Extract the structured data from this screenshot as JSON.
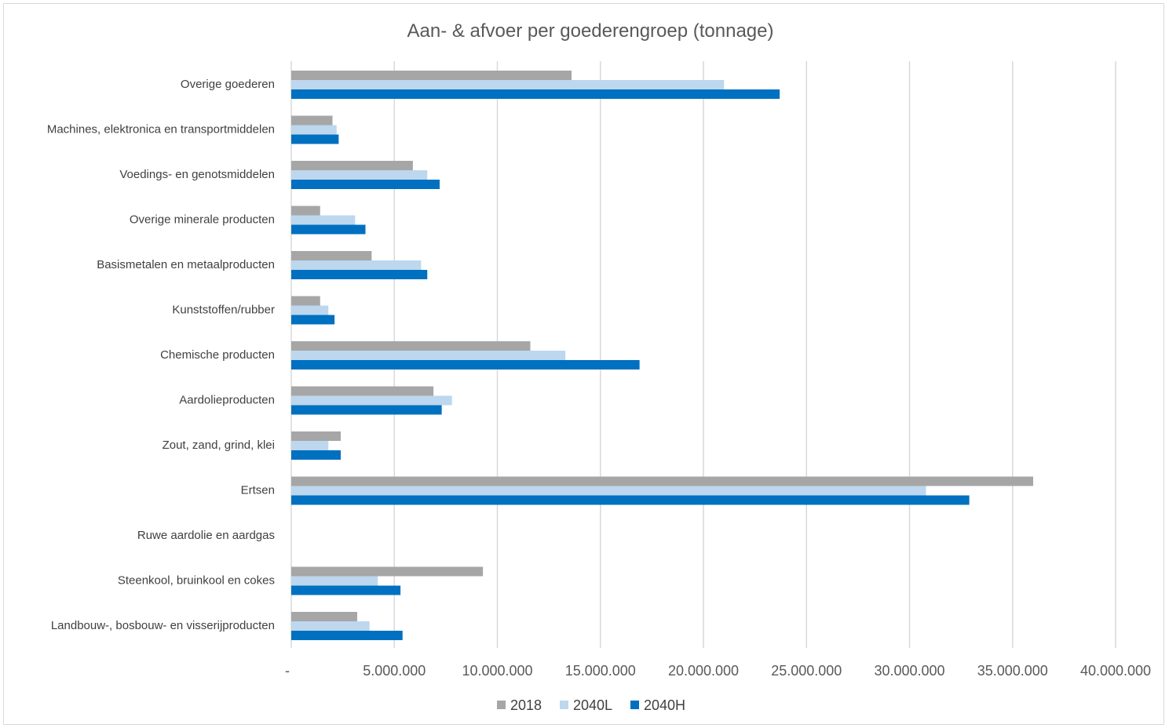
{
  "colors": {
    "s2018": "#a6a6a6",
    "s2040L": "#bdd7ee",
    "s2040H": "#0070c0",
    "grid": "#d9d9d9"
  },
  "chart_data": {
    "type": "bar",
    "orientation": "horizontal",
    "title": "Aan- & afvoer per goederengroep (tonnage)",
    "xlabel": "",
    "ylabel": "",
    "xlim": [
      0,
      40000000
    ],
    "grid": true,
    "legend_position": "bottom",
    "categories": [
      "Overige goederen",
      "Machines, elektronica en transportmiddelen",
      "Voedings- en genotsmiddelen",
      "Overige minerale producten",
      "Basismetalen en metaalproducten",
      "Kunststoffen/rubber",
      "Chemische producten",
      "Aardolieproducten",
      "Zout, zand, grind, klei",
      "Ertsen",
      "Ruwe aardolie en aardgas",
      "Steenkool, bruinkool en cokes",
      "Landbouw-, bosbouw- en visserijproducten"
    ],
    "series": [
      {
        "name": "2018",
        "values": [
          13600000,
          2000000,
          5900000,
          1400000,
          3900000,
          1400000,
          11600000,
          6900000,
          2400000,
          36000000,
          0,
          9300000,
          3200000
        ]
      },
      {
        "name": "2040L",
        "values": [
          21000000,
          2200000,
          6600000,
          3100000,
          6300000,
          1800000,
          13300000,
          7800000,
          1800000,
          30800000,
          0,
          4200000,
          3800000
        ]
      },
      {
        "name": "2040H",
        "values": [
          23700000,
          2300000,
          7200000,
          3600000,
          6600000,
          2100000,
          16900000,
          7300000,
          2400000,
          32900000,
          0,
          5300000,
          5400000
        ]
      }
    ],
    "x_ticks": [
      {
        "value": 0,
        "label": "-"
      },
      {
        "value": 5000000,
        "label": "5.000.000"
      },
      {
        "value": 10000000,
        "label": "10.000.000"
      },
      {
        "value": 15000000,
        "label": "15.000.000"
      },
      {
        "value": 20000000,
        "label": "20.000.000"
      },
      {
        "value": 25000000,
        "label": "25.000.000"
      },
      {
        "value": 30000000,
        "label": "30.000.000"
      },
      {
        "value": 35000000,
        "label": "35.000.000"
      },
      {
        "value": 40000000,
        "label": "40.000.000"
      }
    ]
  }
}
